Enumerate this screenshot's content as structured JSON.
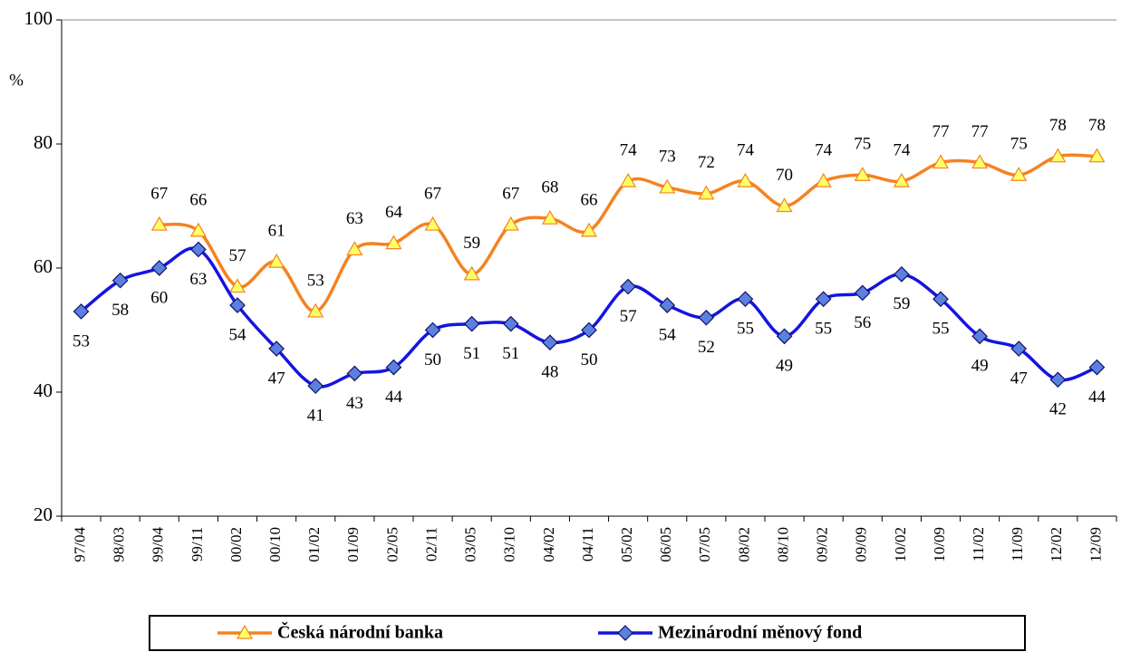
{
  "chart_data": {
    "type": "line",
    "y_label": "%",
    "categories": [
      "97/04",
      "98/03",
      "99/04",
      "99/11",
      "00/02",
      "00/10",
      "01/02",
      "01/09",
      "02/05",
      "02/11",
      "03/05",
      "03/10",
      "04/02",
      "04/11",
      "05/02",
      "06/05",
      "07/05",
      "08/02",
      "08/10",
      "09/02",
      "09/09",
      "10/02",
      "10/09",
      "11/02",
      "11/09",
      "12/02",
      "12/09"
    ],
    "series": [
      {
        "name": "Česká národní banka",
        "color": "#f58220",
        "marker": "triangle",
        "marker_color": "#ffff66",
        "values": [
          null,
          null,
          67,
          66,
          57,
          61,
          53,
          63,
          64,
          67,
          59,
          67,
          68,
          66,
          74,
          73,
          72,
          74,
          70,
          74,
          75,
          74,
          77,
          77,
          75,
          78,
          78
        ]
      },
      {
        "name": "Mezinárodní měnový fond",
        "color": "#1414e0",
        "marker": "diamond",
        "marker_color": "#5b80e0",
        "values": [
          53,
          58,
          60,
          63,
          54,
          47,
          41,
          43,
          44,
          50,
          51,
          51,
          48,
          50,
          57,
          54,
          52,
          55,
          49,
          55,
          56,
          59,
          55,
          49,
          47,
          42,
          44
        ]
      }
    ],
    "ylim": [
      20,
      100
    ],
    "yticks": [
      20,
      40,
      60,
      80,
      100
    ],
    "grid": false,
    "smooth": true,
    "legend": "bottom"
  }
}
